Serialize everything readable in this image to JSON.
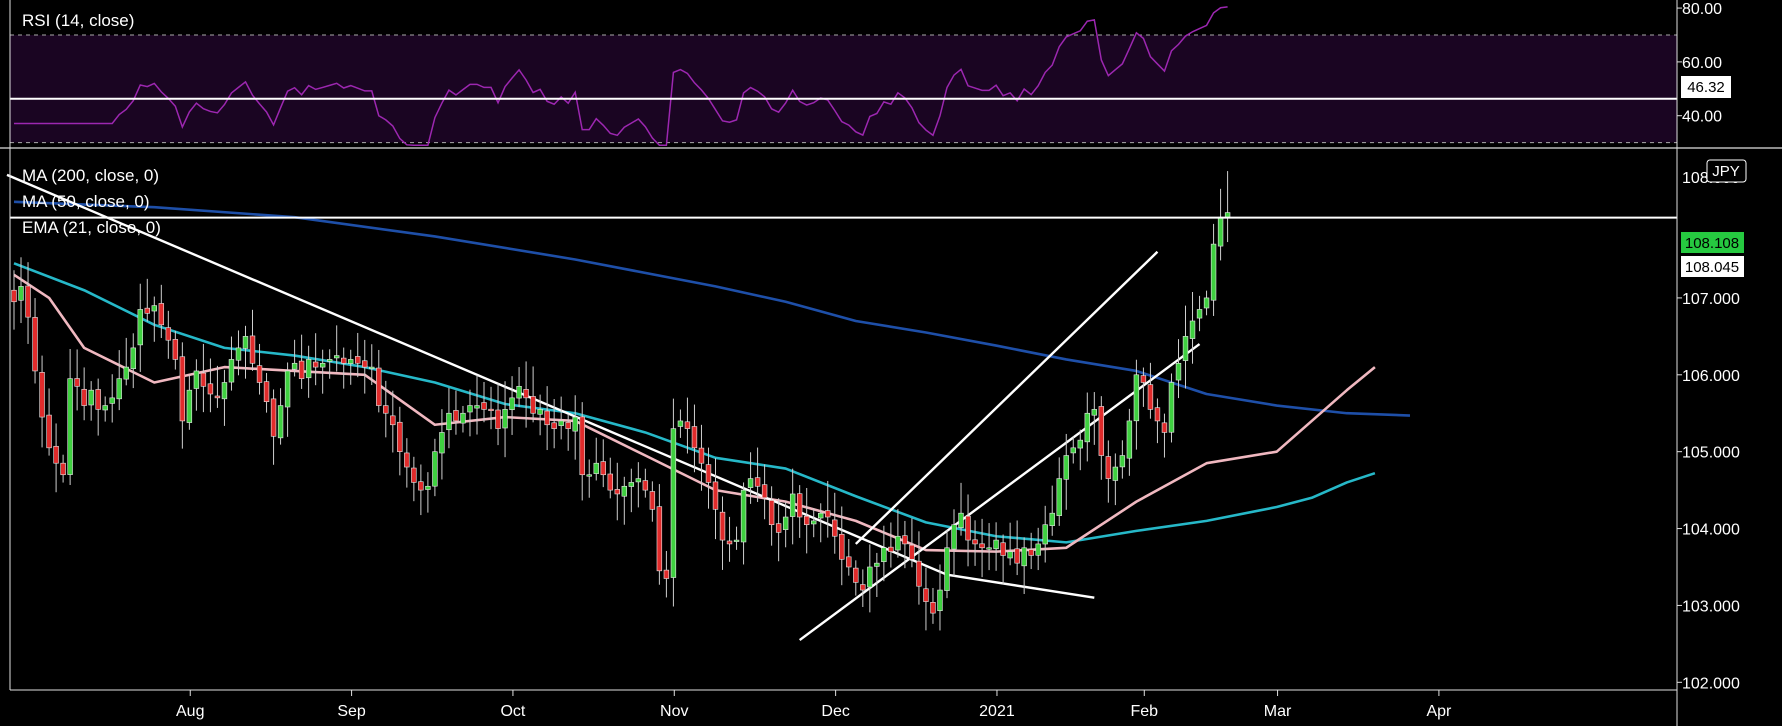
{
  "chart_data": [
    {
      "type": "line",
      "title": "RSI (14, close)",
      "ylim": [
        28,
        83
      ],
      "y_ticks": [
        "80.00",
        "60.00",
        "40.00"
      ],
      "y_tick_values": [
        80,
        60,
        40
      ],
      "overbought": 70,
      "oversold": 30,
      "horizontal_line": 46.32,
      "last_value_label": "46.32",
      "line_color": "#9c27b0",
      "band_color": "#1a0522"
    },
    {
      "type": "candlestick",
      "currency_badge": "JPY",
      "legend": [
        "MA (200, close, 0)",
        "MA (50, close, 0)",
        "EMA (21, close, 0)"
      ],
      "ylim": [
        101.9,
        108.95
      ],
      "y_ticks": [
        "107.000",
        "106.000",
        "105.000",
        "104.000",
        "103.000",
        "102.000"
      ],
      "y_tick_values": [
        107,
        106,
        105,
        104,
        103,
        102
      ],
      "partial_top_tick": "108.000",
      "price_labels": {
        "last": "108.108",
        "line": "108.045"
      },
      "horizontal_level": 108.045,
      "x_labels": [
        "Aug",
        "Sep",
        "Oct",
        "Nov",
        "Dec",
        "2021",
        "Feb",
        "Mar",
        "Apr"
      ],
      "month_start_index": [
        16,
        39,
        62,
        85,
        108,
        131,
        152,
        171,
        194
      ],
      "candles_close": [
        106.95,
        107.15,
        106.75,
        106.05,
        105.45,
        105.05,
        104.85,
        104.7,
        105.95,
        105.85,
        105.6,
        105.8,
        105.55,
        105.6,
        105.7,
        105.95,
        106.1,
        106.35,
        106.85,
        106.8,
        106.9,
        106.65,
        106.45,
        106.2,
        105.4,
        105.8,
        106.05,
        105.85,
        105.75,
        105.7,
        105.9,
        106.2,
        106.35,
        106.5,
        106.15,
        105.9,
        105.65,
        105.2,
        105.6,
        106.05,
        106.15,
        105.95,
        106.2,
        106.1,
        106.15,
        106.2,
        106.25,
        106.15,
        106.2,
        106.15,
        106.1,
        106.1,
        105.6,
        105.5,
        105.35,
        105.0,
        104.8,
        104.6,
        104.5,
        104.55,
        105.0,
        105.25,
        105.5,
        105.4,
        105.5,
        105.6,
        105.6,
        105.55,
        105.55,
        105.3,
        105.55,
        105.7,
        105.85,
        105.7,
        105.5,
        105.55,
        105.35,
        105.3,
        105.4,
        105.3,
        105.45,
        104.7,
        104.7,
        104.85,
        104.7,
        104.5,
        104.45,
        104.55,
        104.6,
        104.65,
        104.5,
        104.25,
        103.45,
        103.35,
        105.3,
        105.4,
        105.3,
        105.05,
        104.85,
        104.6,
        104.25,
        103.85,
        103.8,
        103.85,
        104.5,
        104.65,
        104.55,
        104.4,
        104.05,
        103.95,
        104.15,
        104.45,
        104.15,
        104.05,
        104.1,
        104.2,
        104.15,
        103.9,
        103.6,
        103.5,
        103.3,
        103.2,
        103.5,
        103.55,
        103.75,
        103.7,
        103.9,
        103.8,
        103.6,
        103.25,
        103.05,
        102.9,
        103.2,
        103.75,
        104.05,
        104.2,
        103.85,
        103.8,
        103.75,
        103.75,
        103.85,
        103.65,
        103.7,
        103.55,
        103.75,
        103.65,
        103.8,
        104.05,
        104.2,
        104.65,
        104.95,
        105.05,
        105.15,
        105.5,
        105.55,
        104.95,
        104.65,
        104.8,
        104.95,
        105.4,
        106.0,
        105.9,
        105.55,
        105.4,
        105.25,
        105.9,
        106.15,
        106.5,
        106.7,
        106.85,
        107.0,
        107.7,
        108.05,
        108.11
      ],
      "series": [
        {
          "name": "MA (200, close, 0)",
          "color": "#1e4fa8",
          "values": [
            [
              0,
              108.25
            ],
            [
              20,
              108.18
            ],
            [
              40,
              108.05
            ],
            [
              60,
              107.8
            ],
            [
              80,
              107.5
            ],
            [
              100,
              107.15
            ],
            [
              110,
              106.95
            ],
            [
              120,
              106.7
            ],
            [
              130,
              106.55
            ],
            [
              140,
              106.38
            ],
            [
              150,
              106.2
            ],
            [
              160,
              106.05
            ],
            [
              165,
              105.9
            ],
            [
              170,
              105.75
            ],
            [
              180,
              105.6
            ],
            [
              190,
              105.5
            ],
            [
              199,
              105.47
            ]
          ]
        },
        {
          "name": "MA (50, close, 0)",
          "color": "#26b8c8",
          "values": [
            [
              0,
              107.45
            ],
            [
              10,
              107.1
            ],
            [
              20,
              106.65
            ],
            [
              30,
              106.35
            ],
            [
              40,
              106.25
            ],
            [
              50,
              106.1
            ],
            [
              60,
              105.9
            ],
            [
              70,
              105.62
            ],
            [
              80,
              105.5
            ],
            [
              90,
              105.25
            ],
            [
              100,
              104.92
            ],
            [
              110,
              104.78
            ],
            [
              120,
              104.42
            ],
            [
              130,
              104.08
            ],
            [
              140,
              103.9
            ],
            [
              150,
              103.82
            ],
            [
              160,
              103.97
            ],
            [
              170,
              104.1
            ],
            [
              180,
              104.28
            ],
            [
              185,
              104.4
            ],
            [
              190,
              104.6
            ],
            [
              194,
              104.72
            ]
          ]
        },
        {
          "name": "EMA (21, close, 0)",
          "color": "#f0b8c0",
          "values": [
            [
              0,
              107.3
            ],
            [
              5,
              107.0
            ],
            [
              10,
              106.35
            ],
            [
              20,
              105.9
            ],
            [
              30,
              106.1
            ],
            [
              40,
              106.05
            ],
            [
              50,
              106.0
            ],
            [
              60,
              105.35
            ],
            [
              70,
              105.45
            ],
            [
              80,
              105.4
            ],
            [
              90,
              104.95
            ],
            [
              100,
              104.5
            ],
            [
              110,
              104.35
            ],
            [
              120,
              104.1
            ],
            [
              130,
              103.72
            ],
            [
              140,
              103.7
            ],
            [
              150,
              103.75
            ],
            [
              160,
              104.35
            ],
            [
              170,
              104.85
            ],
            [
              180,
              105.0
            ],
            [
              185,
              105.4
            ],
            [
              190,
              105.8
            ],
            [
              194,
              106.1
            ]
          ]
        }
      ],
      "trendlines": [
        {
          "name": "descending-trendline",
          "points": [
            [
              -1,
              108.6
            ],
            [
              133,
              103.4
            ],
            [
              154,
              103.1
            ]
          ]
        },
        {
          "name": "channel-upper",
          "points": [
            [
              120,
              103.8
            ],
            [
              163,
              107.6
            ]
          ]
        },
        {
          "name": "channel-lower",
          "points": [
            [
              112,
              102.55
            ],
            [
              169,
              106.4
            ]
          ]
        }
      ]
    }
  ]
}
